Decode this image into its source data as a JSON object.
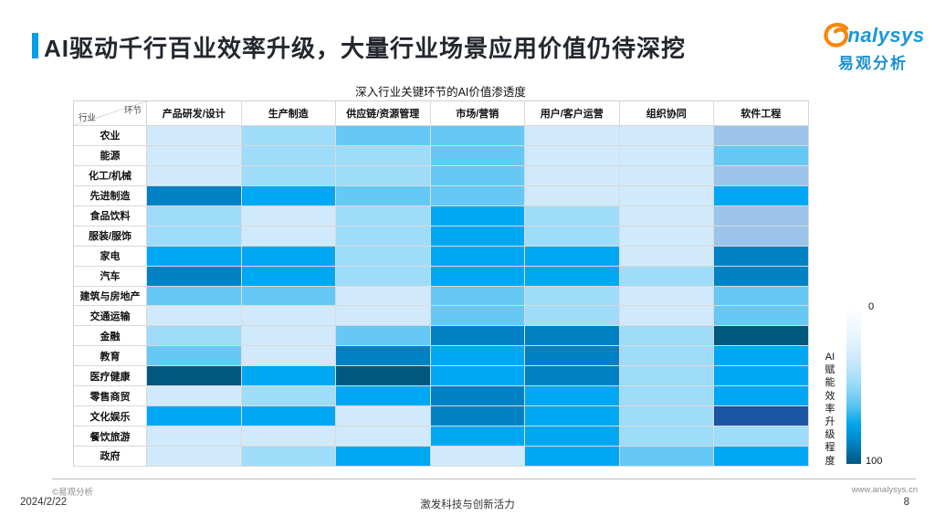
{
  "header": {
    "title": "AI驱动千行百业效率升级，大量行业场景应用价值仍待深挖",
    "accent_color": "#00a0e9",
    "logo": {
      "brand_en": "nalysys",
      "brand_cn": "易观分析",
      "swirl_color": "#f6870f",
      "blue": "#1a97db"
    }
  },
  "chart": {
    "title": "深入行业关键环节的AI价值渗透度",
    "corner": {
      "top": "环节",
      "bottom": "行业"
    },
    "columns": [
      "产品研发/设计",
      "生产制造",
      "供应链/资源管理",
      "市场/营销",
      "用户/客户运营",
      "组织协同",
      "软件工程"
    ],
    "palette": {
      "VL": "#d0eafb",
      "L": "#9fdcf9",
      "P": "#9cc4eb",
      "M": "#66c9f5",
      "B": "#00a8f4",
      "D": "#0081c3",
      "PT": "#00587f",
      "NV": "#1c55a2"
    },
    "rows": [
      {
        "label": "农业",
        "levels": [
          "VL",
          "L",
          "M",
          "M",
          "VL",
          "VL",
          "P"
        ]
      },
      {
        "label": "能源",
        "levels": [
          "VL",
          "L",
          "L",
          "M",
          "VL",
          "VL",
          "M"
        ]
      },
      {
        "label": "化工/机械",
        "levels": [
          "VL",
          "L",
          "L",
          "M",
          "VL",
          "VL",
          "P"
        ]
      },
      {
        "label": "先进制造",
        "levels": [
          "D",
          "B",
          "M",
          "M",
          "VL",
          "VL",
          "B"
        ]
      },
      {
        "label": "食品饮料",
        "levels": [
          "L",
          "VL",
          "L",
          "B",
          "L",
          "VL",
          "P"
        ]
      },
      {
        "label": "服装/服饰",
        "levels": [
          "L",
          "VL",
          "L",
          "B",
          "L",
          "VL",
          "P"
        ]
      },
      {
        "label": "家电",
        "levels": [
          "B",
          "B",
          "L",
          "B",
          "B",
          "VL",
          "D"
        ]
      },
      {
        "label": "汽车",
        "levels": [
          "D",
          "B",
          "L",
          "B",
          "B",
          "L",
          "D"
        ]
      },
      {
        "label": "建筑与房地产",
        "levels": [
          "M",
          "M",
          "VL",
          "M",
          "L",
          "VL",
          "M"
        ]
      },
      {
        "label": "交通运输",
        "levels": [
          "VL",
          "VL",
          "VL",
          "M",
          "L",
          "VL",
          "M"
        ]
      },
      {
        "label": "金融",
        "levels": [
          "L",
          "VL",
          "M",
          "D",
          "D",
          "L",
          "PT"
        ]
      },
      {
        "label": "教育",
        "levels": [
          "M",
          "VL",
          "D",
          "B",
          "D",
          "L",
          "B"
        ]
      },
      {
        "label": "医疗健康",
        "levels": [
          "PT",
          "B",
          "PT",
          "B",
          "D",
          "L",
          "B"
        ]
      },
      {
        "label": "零售商贸",
        "levels": [
          "VL",
          "L",
          "B",
          "D",
          "B",
          "L",
          "B"
        ]
      },
      {
        "label": "文化娱乐",
        "levels": [
          "B",
          "B",
          "VL",
          "D",
          "B",
          "L",
          "NV"
        ]
      },
      {
        "label": "餐饮旅游",
        "levels": [
          "VL",
          "VL",
          "VL",
          "B",
          "B",
          "L",
          "L"
        ]
      },
      {
        "label": "政府",
        "levels": [
          "VL",
          "L",
          "B",
          "VL",
          "B",
          "M",
          "B"
        ]
      }
    ],
    "legend": {
      "min": "0",
      "max": "100",
      "label": "AI赋能效率升级程度"
    }
  },
  "chart_data": {
    "type": "heatmap",
    "title": "深入行业关键环节的AI价值渗透度",
    "x_axis_label": "环节",
    "y_axis_label": "行业",
    "x_categories": [
      "产品研发/设计",
      "生产制造",
      "供应链/资源管理",
      "市场/营销",
      "用户/客户运营",
      "组织协同",
      "软件工程"
    ],
    "y_categories": [
      "农业",
      "能源",
      "化工/机械",
      "先进制造",
      "食品饮料",
      "服装/服饰",
      "家电",
      "汽车",
      "建筑与房地产",
      "交通运输",
      "金融",
      "教育",
      "医疗健康",
      "零售商贸",
      "文化娱乐",
      "餐饮旅游",
      "政府"
    ],
    "values": [
      [
        10,
        25,
        45,
        45,
        10,
        10,
        40
      ],
      [
        10,
        25,
        25,
        45,
        10,
        10,
        45
      ],
      [
        10,
        25,
        25,
        45,
        10,
        10,
        40
      ],
      [
        80,
        65,
        45,
        45,
        10,
        10,
        65
      ],
      [
        25,
        10,
        25,
        65,
        25,
        10,
        40
      ],
      [
        25,
        10,
        25,
        65,
        25,
        10,
        40
      ],
      [
        65,
        65,
        25,
        65,
        65,
        10,
        80
      ],
      [
        80,
        65,
        25,
        65,
        65,
        25,
        80
      ],
      [
        45,
        45,
        10,
        45,
        25,
        10,
        45
      ],
      [
        10,
        10,
        10,
        45,
        25,
        10,
        45
      ],
      [
        25,
        10,
        45,
        80,
        80,
        25,
        95
      ],
      [
        45,
        10,
        80,
        65,
        80,
        25,
        65
      ],
      [
        95,
        65,
        95,
        65,
        80,
        25,
        65
      ],
      [
        10,
        25,
        65,
        80,
        65,
        25,
        65
      ],
      [
        65,
        65,
        10,
        80,
        65,
        25,
        95
      ],
      [
        10,
        10,
        10,
        65,
        65,
        25,
        25
      ],
      [
        10,
        25,
        65,
        10,
        65,
        45,
        65
      ]
    ],
    "value_scale": {
      "min": 0,
      "max": 100,
      "label": "AI赋能效率升级程度"
    },
    "legend_position": "right",
    "grid": true
  },
  "footer": {
    "copyright": "©易观分析",
    "website": "www.analysys.cn",
    "date": "2024/2/22",
    "slogan": "激发科技与创新活力",
    "page_number": "8"
  }
}
